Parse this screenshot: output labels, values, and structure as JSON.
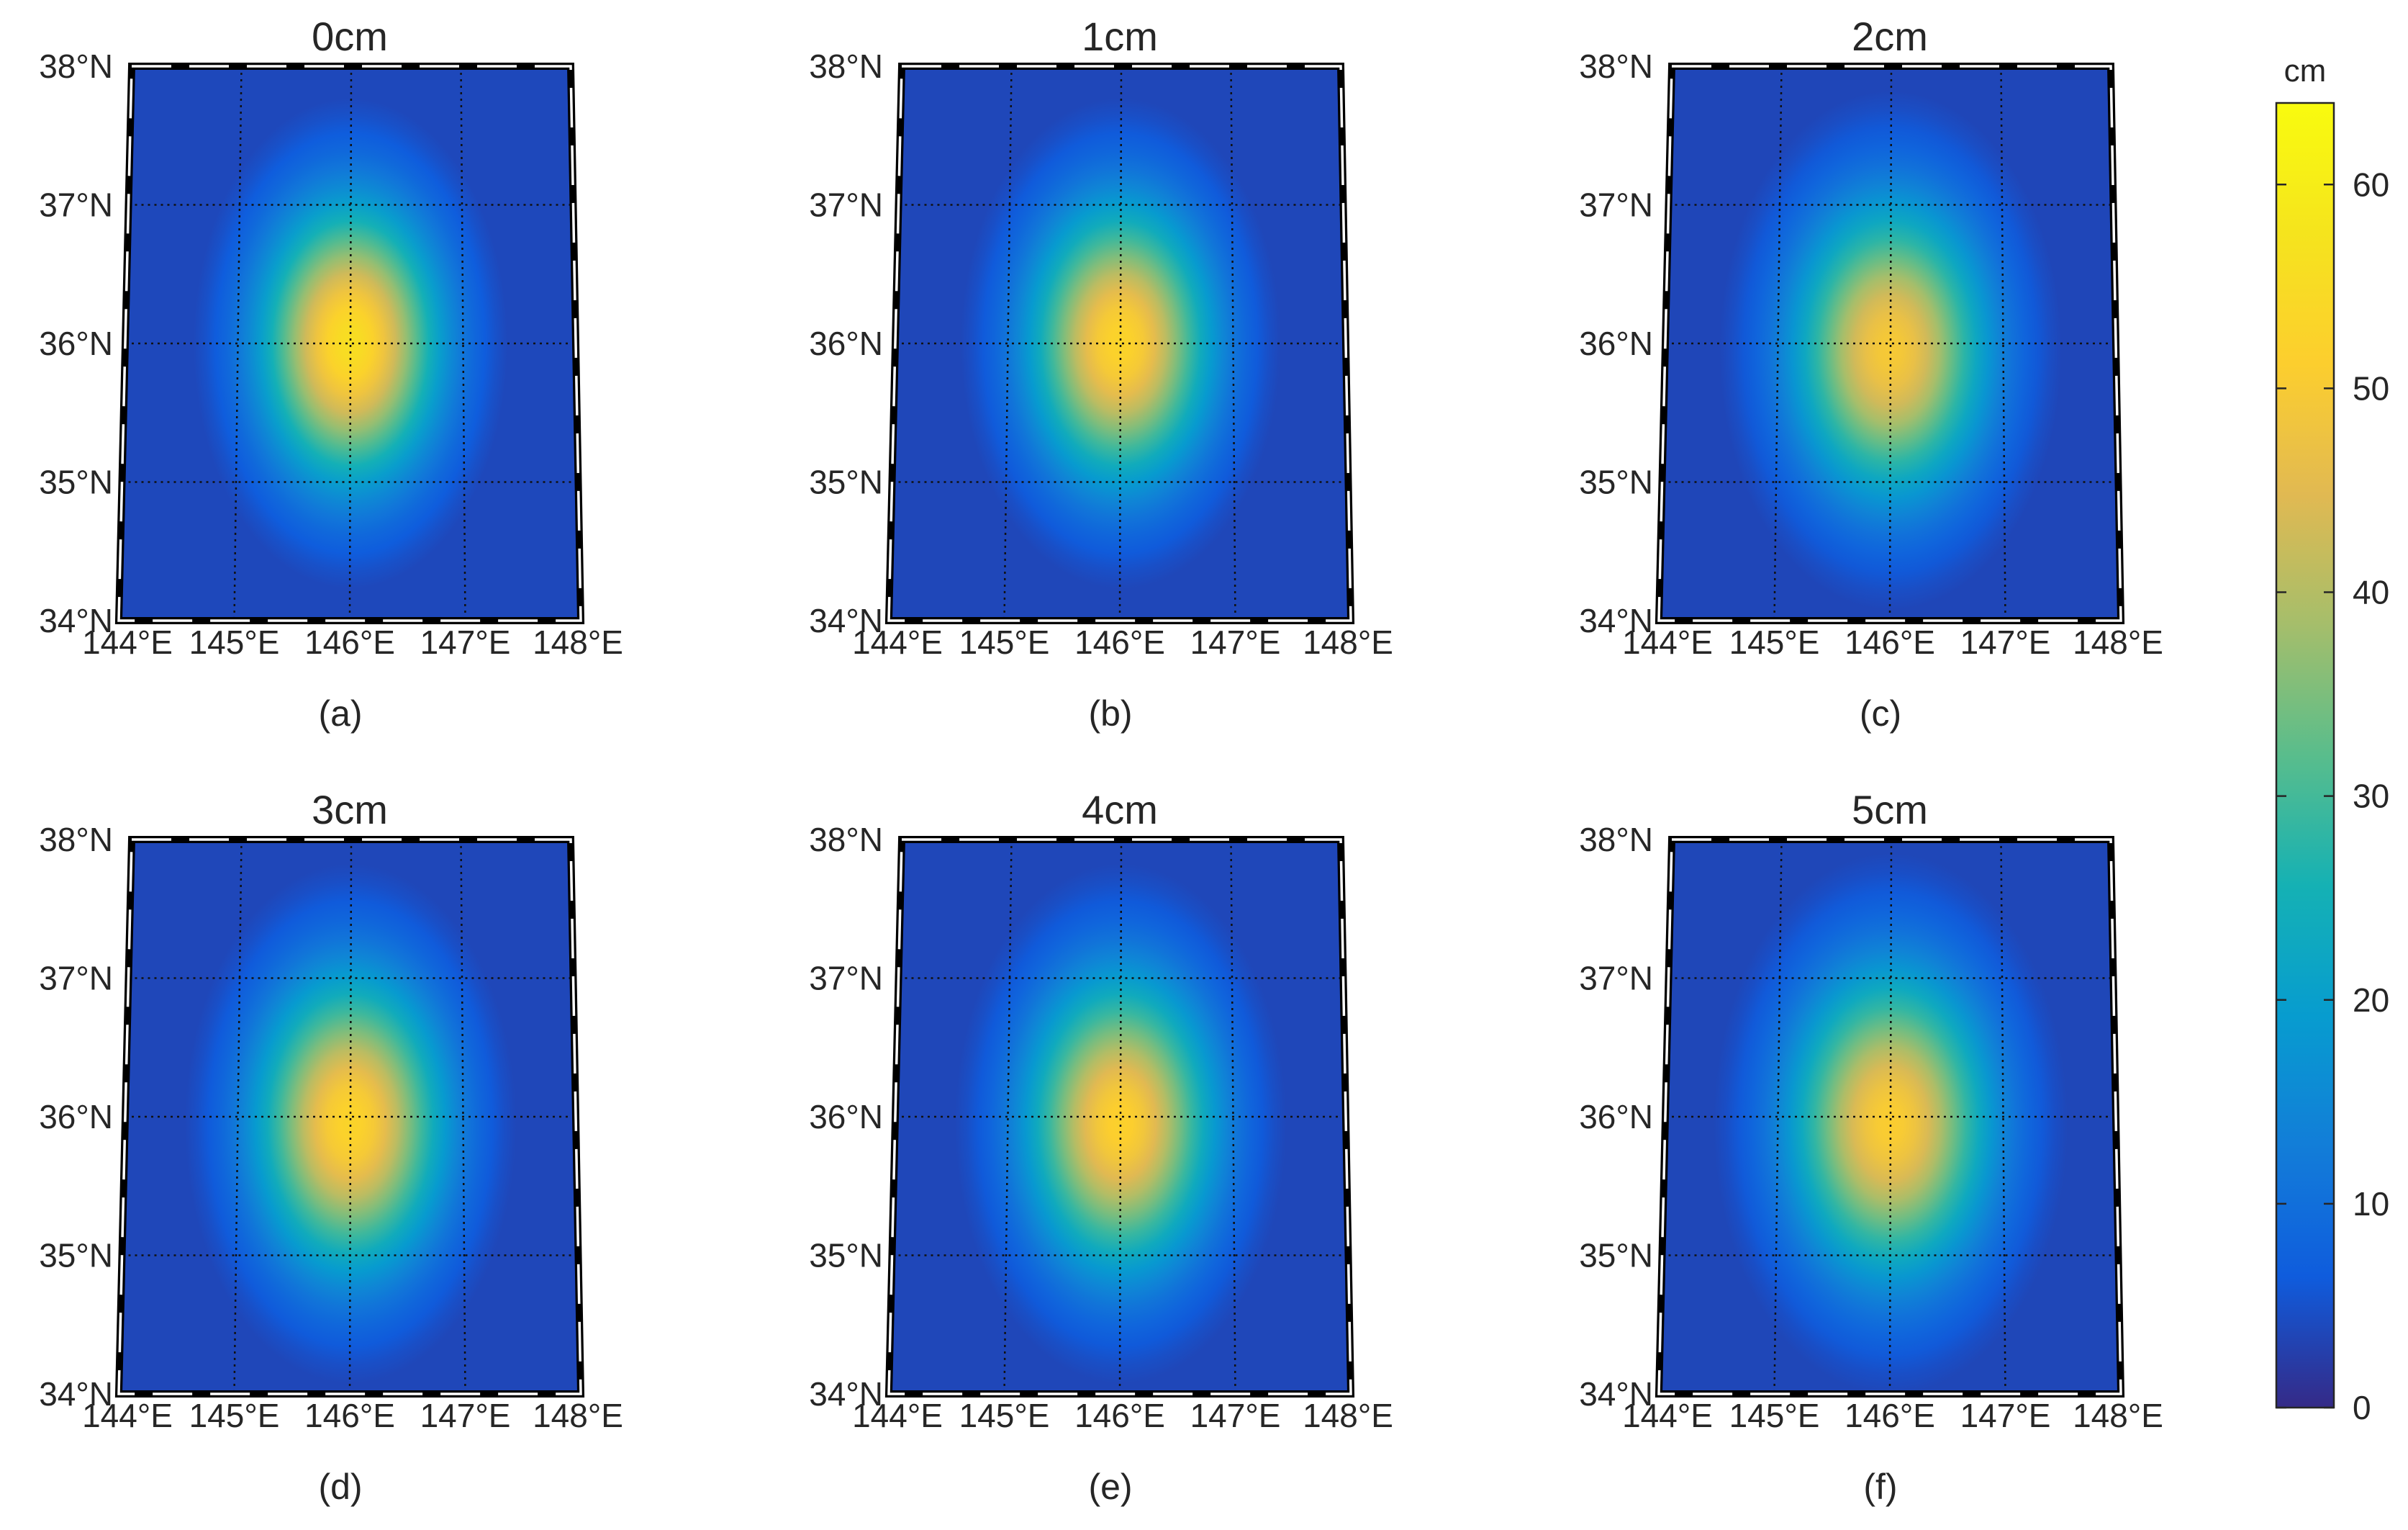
{
  "figure": {
    "colorbar": {
      "label": "cm",
      "ticks": [
        0,
        10,
        20,
        30,
        40,
        50,
        60
      ],
      "limits": [
        0,
        64
      ],
      "colormap": "parula"
    }
  },
  "chart_data": [
    {
      "type": "heatmap",
      "panel": "(a)",
      "title": "0cm",
      "x_ticks": [
        "144°E",
        "145°E",
        "146°E",
        "147°E",
        "148°E"
      ],
      "y_ticks": [
        "34°N",
        "35°N",
        "36°N",
        "37°N",
        "38°N"
      ],
      "xlim": [
        144,
        148
      ],
      "ylim": [
        34,
        38
      ],
      "peak": {
        "lon": 146.0,
        "lat": 36.0,
        "value": 56
      },
      "spread_deg": {
        "lon": 0.55,
        "lat": 0.68
      },
      "background_value": 2
    },
    {
      "type": "heatmap",
      "panel": "(b)",
      "title": "1cm",
      "x_ticks": [
        "144°E",
        "145°E",
        "146°E",
        "147°E",
        "148°E"
      ],
      "y_ticks": [
        "34°N",
        "35°N",
        "36°N",
        "37°N",
        "38°N"
      ],
      "xlim": [
        144,
        148
      ],
      "ylim": [
        34,
        38
      ],
      "peak": {
        "lon": 146.0,
        "lat": 36.0,
        "value": 53
      },
      "spread_deg": {
        "lon": 0.56,
        "lat": 0.68
      },
      "background_value": 2
    },
    {
      "type": "heatmap",
      "panel": "(c)",
      "title": "2cm",
      "x_ticks": [
        "144°E",
        "145°E",
        "146°E",
        "147°E",
        "148°E"
      ],
      "y_ticks": [
        "34°N",
        "35°N",
        "36°N",
        "37°N",
        "38°N"
      ],
      "xlim": [
        144,
        148
      ],
      "ylim": [
        34,
        38
      ],
      "peak": {
        "lon": 146.0,
        "lat": 35.95,
        "value": 50
      },
      "spread_deg": {
        "lon": 0.6,
        "lat": 0.72
      },
      "background_value": 2
    },
    {
      "type": "heatmap",
      "panel": "(d)",
      "title": "3cm",
      "x_ticks": [
        "144°E",
        "145°E",
        "146°E",
        "147°E",
        "148°E"
      ],
      "y_ticks": [
        "34°N",
        "35°N",
        "36°N",
        "37°N",
        "38°N"
      ],
      "xlim": [
        144,
        148
      ],
      "ylim": [
        34,
        38
      ],
      "peak": {
        "lon": 146.0,
        "lat": 35.95,
        "value": 53
      },
      "spread_deg": {
        "lon": 0.58,
        "lat": 0.72
      },
      "background_value": 2
    },
    {
      "type": "heatmap",
      "panel": "(e)",
      "title": "4cm",
      "x_ticks": [
        "144°E",
        "145°E",
        "146°E",
        "147°E",
        "148°E"
      ],
      "y_ticks": [
        "34°N",
        "35°N",
        "36°N",
        "37°N",
        "38°N"
      ],
      "xlim": [
        144,
        148
      ],
      "ylim": [
        34,
        38
      ],
      "peak": {
        "lon": 146.0,
        "lat": 35.95,
        "value": 52
      },
      "spread_deg": {
        "lon": 0.58,
        "lat": 0.72
      },
      "background_value": 2
    },
    {
      "type": "heatmap",
      "panel": "(f)",
      "title": "5cm",
      "x_ticks": [
        "144°E",
        "145°E",
        "146°E",
        "147°E",
        "148°E"
      ],
      "y_ticks": [
        "34°N",
        "35°N",
        "36°N",
        "37°N",
        "38°N"
      ],
      "xlim": [
        144,
        148
      ],
      "ylim": [
        34,
        38
      ],
      "peak": {
        "lon": 146.0,
        "lat": 35.95,
        "value": 51
      },
      "spread_deg": {
        "lon": 0.62,
        "lat": 0.75
      },
      "background_value": 2
    }
  ]
}
